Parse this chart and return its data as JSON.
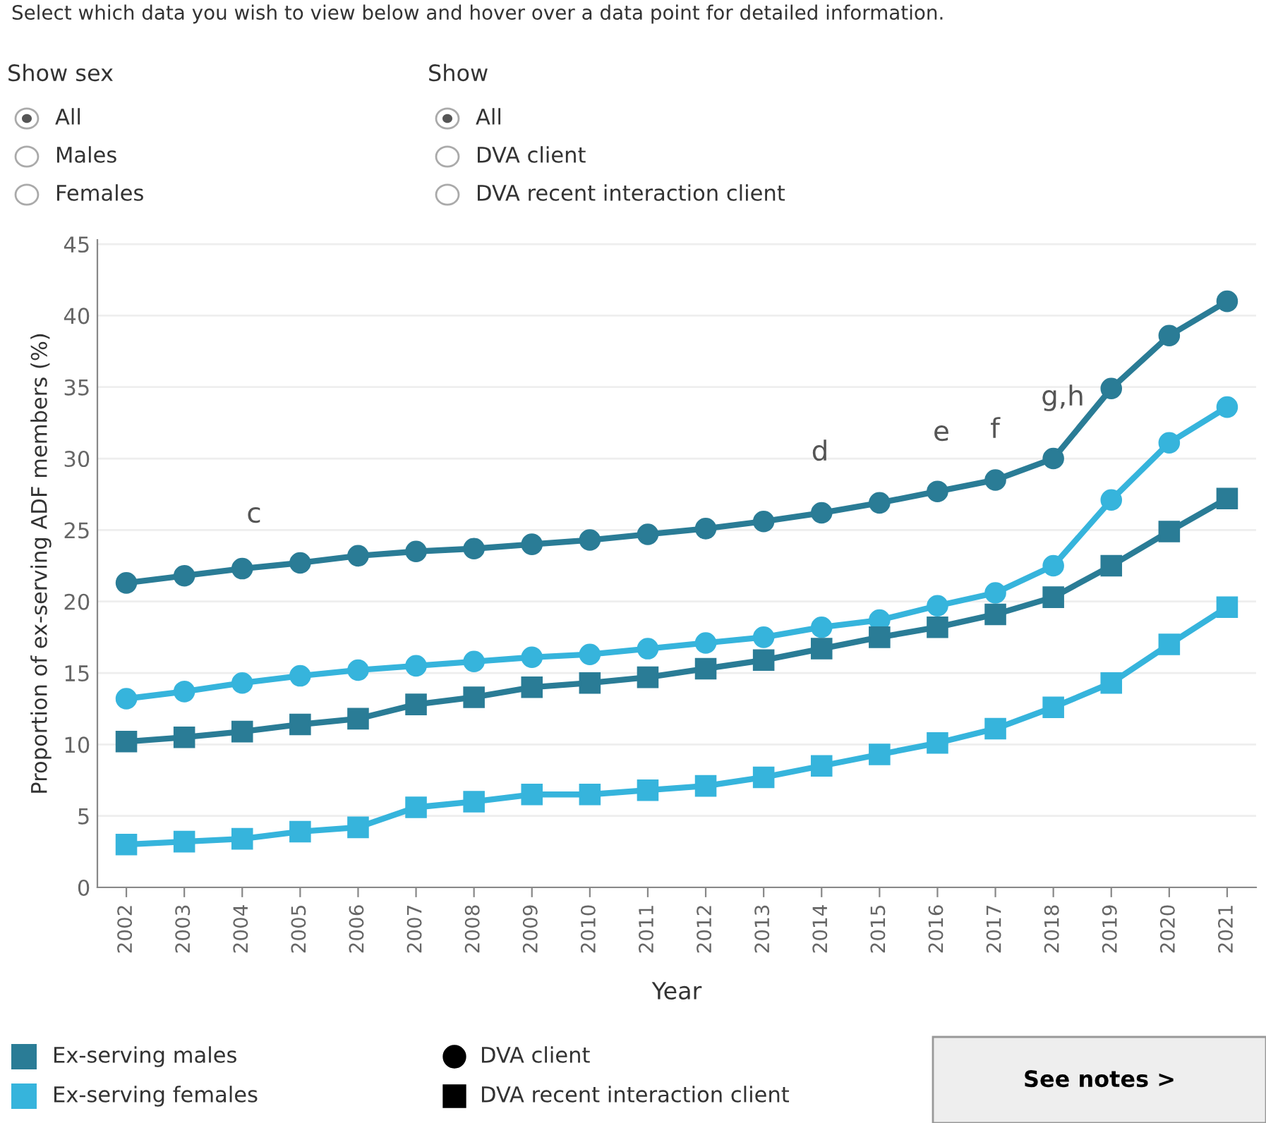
{
  "chart_data": {
    "type": "line",
    "xlabel": "Year",
    "ylabel": "Proportion of ex-serving ADF members (%)",
    "categories": [
      "2002",
      "2003",
      "2004",
      "2005",
      "2006",
      "2007",
      "2008",
      "2009",
      "2010",
      "2011",
      "2012",
      "2013",
      "2014",
      "2015",
      "2016",
      "2017",
      "2018",
      "2019",
      "2020",
      "2021"
    ],
    "series": [
      {
        "color": "#2a7c96",
        "marker": "circle",
        "values": [
          21.3,
          21.8,
          22.3,
          22.7,
          23.2,
          23.5,
          23.7,
          24.0,
          24.3,
          24.7,
          25.1,
          25.6,
          26.2,
          26.9,
          27.7,
          28.5,
          30.0,
          34.9,
          38.6,
          41.0
        ]
      },
      {
        "color": "#36b4dc",
        "marker": "circle",
        "values": [
          13.2,
          13.7,
          14.3,
          14.8,
          15.2,
          15.5,
          15.8,
          16.1,
          16.3,
          16.7,
          17.1,
          17.5,
          18.2,
          18.7,
          19.7,
          20.6,
          22.5,
          27.1,
          31.1,
          33.6
        ]
      },
      {
        "color": "#2a7c96",
        "marker": "square",
        "values": [
          10.2,
          10.5,
          10.9,
          11.4,
          11.8,
          12.8,
          13.3,
          14.0,
          14.3,
          14.7,
          15.3,
          15.9,
          16.7,
          17.5,
          18.2,
          19.1,
          20.3,
          22.5,
          24.9,
          27.2
        ]
      },
      {
        "color": "#36b4dc",
        "marker": "square",
        "values": [
          3.0,
          3.2,
          3.4,
          3.9,
          4.2,
          5.6,
          6.0,
          6.5,
          6.5,
          6.8,
          7.1,
          7.7,
          8.5,
          9.3,
          10.1,
          11.1,
          12.6,
          14.3,
          17.0,
          19.6
        ]
      }
    ],
    "ylim": [
      0,
      45.3
    ],
    "yticks": [
      0,
      5,
      10,
      15,
      20,
      25,
      30,
      35,
      40,
      45
    ],
    "grid": "y",
    "line_style": "solid",
    "annotations": [
      "Select which data you wish to view below and hover over a data point for detailed information.",
      "Show sex",
      "All",
      "Males",
      "Females",
      "Show",
      "All",
      "DVA client",
      "DVA recent interaction client",
      "Ex-serving males",
      "Ex-serving females",
      "DVA client",
      "DVA recent interaction client",
      "See notes >",
      "c",
      "d",
      "e",
      "f",
      "g,h"
    ]
  }
}
